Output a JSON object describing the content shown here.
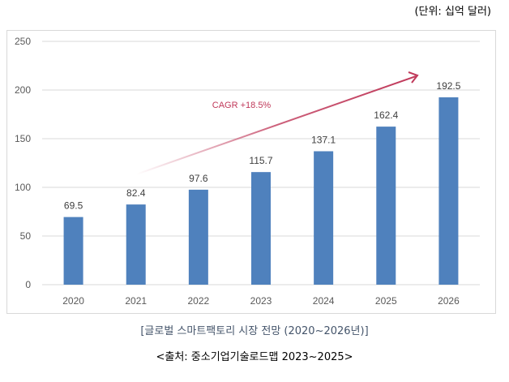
{
  "unit_label": "(단위: 십억 달러)",
  "caption": "[글로벌 스마트팩토리 시장 전망 (2020~2026년)]",
  "source": "<출처: 중소기업기술로드맵 2023~2025>",
  "chart_data": {
    "type": "bar",
    "categories": [
      "2020",
      "2021",
      "2022",
      "2023",
      "2024",
      "2025",
      "2026"
    ],
    "values": [
      69.5,
      82.4,
      97.6,
      115.7,
      137.1,
      162.4,
      192.5
    ],
    "data_labels": [
      "69.5",
      "82.4",
      "97.6",
      "115.7",
      "137.1",
      "162.4",
      "192.5"
    ],
    "ylim": [
      0,
      250
    ],
    "yticks": [
      0,
      50,
      100,
      150,
      200,
      250
    ],
    "grid": true,
    "bar_color": "#4f81bd",
    "annotation": {
      "text": "CAGR +18.5%",
      "color": "#c0395a",
      "type": "arrow"
    }
  }
}
